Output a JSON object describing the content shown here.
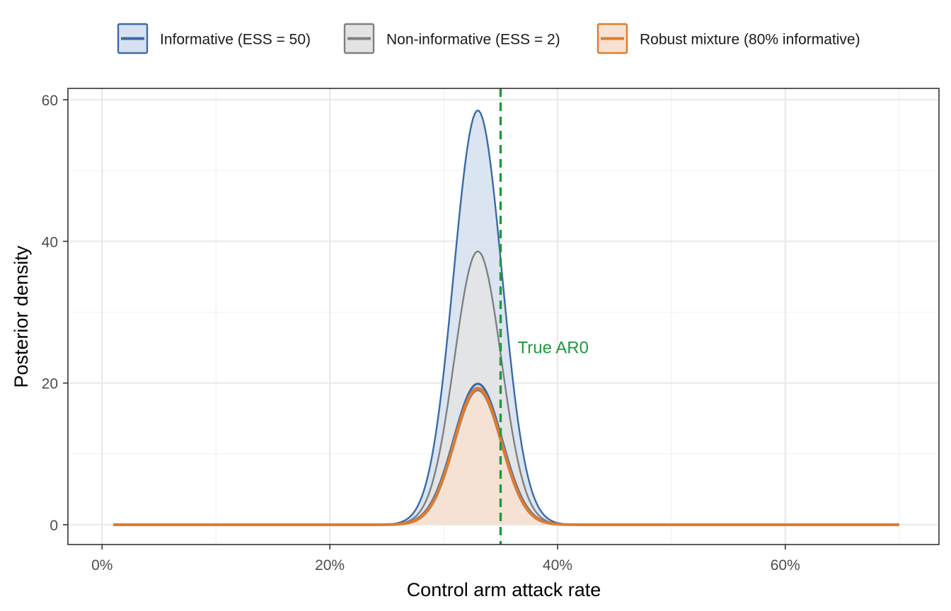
{
  "chart_data": {
    "type": "area",
    "title": "",
    "xlabel": "Control arm attack rate",
    "ylabel": "Posterior density",
    "xlim": [
      -0.03,
      0.735
    ],
    "ylim": [
      -2.8,
      61.6
    ],
    "x_ticks": [
      0,
      0.2,
      0.4,
      0.6
    ],
    "x_tick_labels": [
      "0%",
      "20%",
      "40%",
      "60%"
    ],
    "y_ticks": [
      0,
      20,
      40,
      60
    ],
    "y_tick_labels": [
      "0",
      "20",
      "40",
      "60"
    ],
    "grid": true,
    "legend_position": "top",
    "x_range": [
      0.01,
      0.7
    ],
    "series": [
      {
        "name": "Informative (ESS = 50)",
        "mean": 0.33,
        "sd": 0.0212,
        "peak": 58.5,
        "line_color": "#3a6aa8",
        "fill_color": "#d7e1f0"
      },
      {
        "name": "Non-informative (ESS = 2)",
        "mean": 0.33,
        "sd": 0.0206,
        "peak": 38.6,
        "line_color": "#808080",
        "fill_color": "#e3e3e3"
      },
      {
        "name": "Robust mixture (80% informative)",
        "mean": 0.33,
        "sd": 0.0208,
        "peak": 19.3,
        "line_color": "#e07b2c",
        "fill_color": "#f7e1d2"
      }
    ],
    "extra_curves": [
      {
        "mean": 0.33,
        "sd": 0.0212,
        "peak": 19.9,
        "line_color": "#3a6aa8"
      },
      {
        "mean": 0.33,
        "sd": 0.0206,
        "peak": 19.0,
        "line_color": "#808080"
      }
    ],
    "reference_line": {
      "x": 0.35,
      "label": "True AR0",
      "label_y": 25,
      "color": "#1e9a3c"
    }
  }
}
